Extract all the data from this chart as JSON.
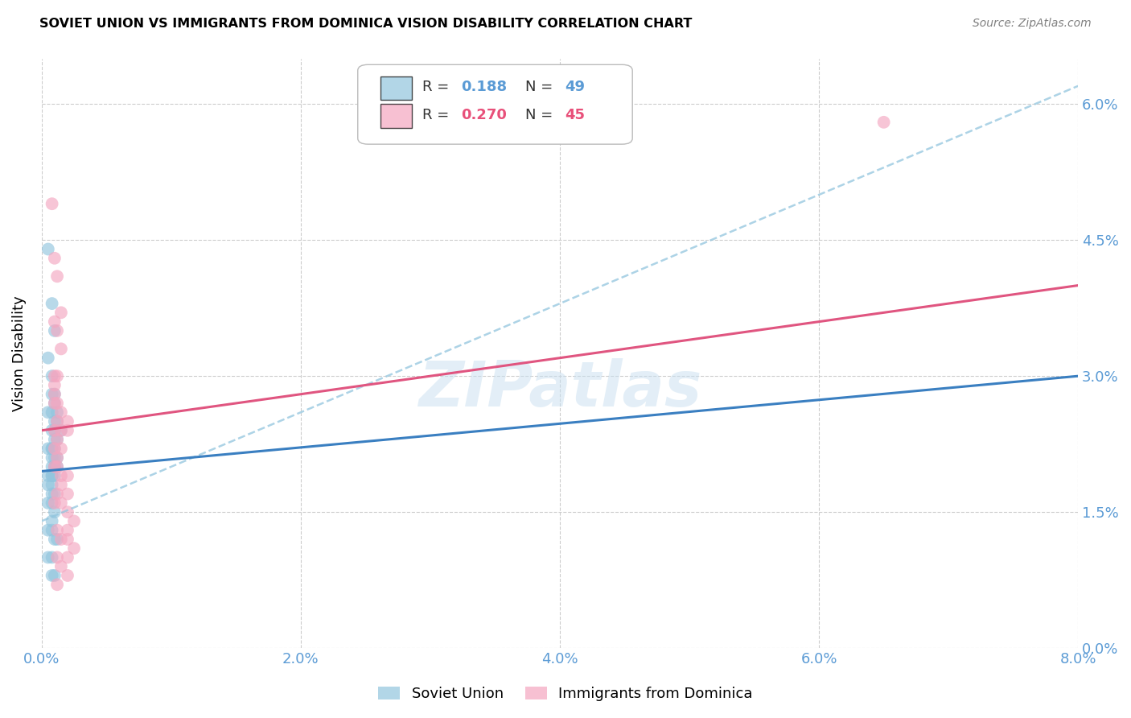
{
  "title": "SOVIET UNION VS IMMIGRANTS FROM DOMINICA VISION DISABILITY CORRELATION CHART",
  "source": "Source: ZipAtlas.com",
  "ylabel": "Vision Disability",
  "watermark": "ZIPatlas",
  "legend_label1": "Soviet Union",
  "legend_label2": "Immigrants from Dominica",
  "blue_color": "#92c5de",
  "pink_color": "#f4a6c0",
  "blue_line_color": "#3a7fc1",
  "pink_line_color": "#e05580",
  "dashed_line_color": "#92c5de",
  "xmin": 0.0,
  "xmax": 0.08,
  "ymin": 0.0,
  "ymax": 0.065,
  "xticks": [
    0.0,
    0.02,
    0.04,
    0.06,
    0.08
  ],
  "yticks": [
    0.0,
    0.015,
    0.03,
    0.045,
    0.06
  ],
  "tick_color": "#5b9bd5",
  "soviet_x": [
    0.0005,
    0.0008,
    0.001,
    0.0005,
    0.0008,
    0.001,
    0.0008,
    0.001,
    0.0012,
    0.0005,
    0.0008,
    0.001,
    0.0012,
    0.0015,
    0.001,
    0.0008,
    0.001,
    0.0012,
    0.001,
    0.0008,
    0.0005,
    0.0008,
    0.001,
    0.0012,
    0.0008,
    0.001,
    0.0008,
    0.001,
    0.0012,
    0.0008,
    0.0005,
    0.0008,
    0.001,
    0.0008,
    0.0005,
    0.0008,
    0.001,
    0.0008,
    0.0005,
    0.001,
    0.0008,
    0.0005,
    0.0008,
    0.001,
    0.0012,
    0.0008,
    0.0005,
    0.0008,
    0.001
  ],
  "soviet_y": [
    0.044,
    0.038,
    0.035,
    0.032,
    0.03,
    0.028,
    0.028,
    0.027,
    0.026,
    0.026,
    0.026,
    0.025,
    0.025,
    0.024,
    0.024,
    0.024,
    0.023,
    0.023,
    0.022,
    0.022,
    0.022,
    0.022,
    0.021,
    0.021,
    0.021,
    0.02,
    0.02,
    0.02,
    0.02,
    0.019,
    0.019,
    0.019,
    0.019,
    0.018,
    0.018,
    0.017,
    0.017,
    0.016,
    0.016,
    0.015,
    0.014,
    0.013,
    0.013,
    0.012,
    0.012,
    0.01,
    0.01,
    0.008,
    0.008
  ],
  "dominica_x": [
    0.0008,
    0.001,
    0.0012,
    0.0015,
    0.001,
    0.0012,
    0.0015,
    0.001,
    0.0012,
    0.001,
    0.001,
    0.0012,
    0.001,
    0.0015,
    0.002,
    0.0012,
    0.001,
    0.0015,
    0.002,
    0.0012,
    0.001,
    0.0015,
    0.0012,
    0.001,
    0.0012,
    0.0015,
    0.002,
    0.0015,
    0.0012,
    0.002,
    0.001,
    0.0015,
    0.002,
    0.0025,
    0.0012,
    0.002,
    0.0015,
    0.002,
    0.0025,
    0.0012,
    0.002,
    0.0015,
    0.002,
    0.065,
    0.0012
  ],
  "dominica_y": [
    0.049,
    0.043,
    0.041,
    0.037,
    0.036,
    0.035,
    0.033,
    0.03,
    0.03,
    0.029,
    0.028,
    0.027,
    0.027,
    0.026,
    0.025,
    0.025,
    0.024,
    0.024,
    0.024,
    0.023,
    0.022,
    0.022,
    0.021,
    0.02,
    0.02,
    0.019,
    0.019,
    0.018,
    0.017,
    0.017,
    0.016,
    0.016,
    0.015,
    0.014,
    0.013,
    0.013,
    0.012,
    0.012,
    0.011,
    0.01,
    0.01,
    0.009,
    0.008,
    0.058,
    0.007
  ],
  "blue_trend_x": [
    0.0,
    0.08
  ],
  "blue_trend_y": [
    0.0195,
    0.03
  ],
  "pink_trend_x": [
    0.0,
    0.08
  ],
  "pink_trend_y": [
    0.024,
    0.04
  ],
  "dashed_trend_x": [
    0.0,
    0.08
  ],
  "dashed_trend_y": [
    0.014,
    0.062
  ]
}
